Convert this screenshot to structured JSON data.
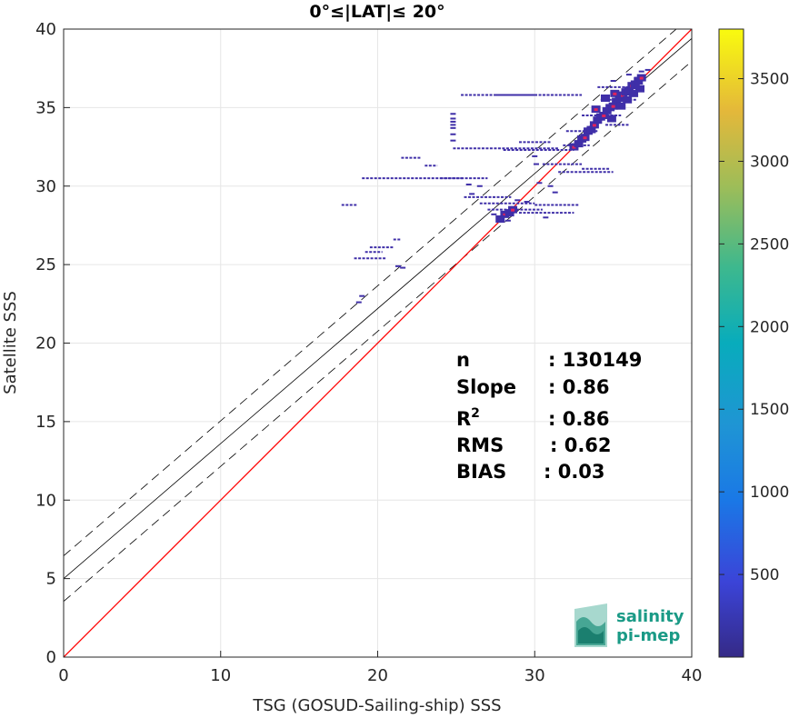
{
  "chart_data": {
    "type": "scatter",
    "title": "0°≤|LAT|≤ 20°",
    "xlabel": "TSG (GOSUD-Sailing-ship) SSS",
    "ylabel": "Satellite SSS",
    "xlim": [
      0,
      40
    ],
    "ylim": [
      0,
      40
    ],
    "xticks": [
      "0",
      "10",
      "20",
      "30",
      "40"
    ],
    "yticks": [
      "0",
      "5",
      "10",
      "15",
      "20",
      "25",
      "30",
      "35",
      "40"
    ],
    "grid": true,
    "identity_line": {
      "slope": 1,
      "intercept": 0,
      "color": "#ff0000"
    },
    "fit_line": {
      "slope": 0.86,
      "intercept": 5.0
    },
    "fit_band_offset": 1.45,
    "stats": [
      {
        "label": "n",
        "value": ": 130149"
      },
      {
        "label": "Slope",
        "value": ": 0.86"
      },
      {
        "label": "R",
        "sup": "2",
        "value": ": 0.86"
      },
      {
        "label": "RMS",
        "value": ": 0.62"
      },
      {
        "label": "BIAS",
        "value": ": 0.03"
      }
    ],
    "segments": [
      [
        25.3,
        35.8,
        31.2,
        35.8
      ],
      [
        27.5,
        35.8,
        30.0,
        35.8
      ],
      [
        30.5,
        35.8,
        33.0,
        35.8
      ],
      [
        24.8,
        32.4,
        31.5,
        32.4
      ],
      [
        28.0,
        32.3,
        32.5,
        32.3
      ],
      [
        31.8,
        32.6,
        33.5,
        32.6
      ],
      [
        19.0,
        30.5,
        25.5,
        30.5
      ],
      [
        24.0,
        30.5,
        27.0,
        30.5
      ],
      [
        25.5,
        29.3,
        28.5,
        29.3
      ],
      [
        26.5,
        28.9,
        30.0,
        28.9
      ],
      [
        27.0,
        28.5,
        30.5,
        28.5
      ],
      [
        29.0,
        28.3,
        32.5,
        28.3
      ],
      [
        30.0,
        28.8,
        32.8,
        28.8
      ],
      [
        17.7,
        28.8,
        18.7,
        28.8
      ],
      [
        19.5,
        26.1,
        21.0,
        26.1
      ],
      [
        18.5,
        25.4,
        20.5,
        25.4
      ],
      [
        19.2,
        25.8,
        20.3,
        25.8
      ],
      [
        21.0,
        26.6,
        21.5,
        26.6
      ],
      [
        21.5,
        31.8,
        22.8,
        31.8
      ],
      [
        23.0,
        31.3,
        23.8,
        31.3
      ],
      [
        30.5,
        31.4,
        33.0,
        31.4
      ],
      [
        31.5,
        30.9,
        35.0,
        30.9
      ],
      [
        33.0,
        31.1,
        34.8,
        31.1
      ],
      [
        32.0,
        33.5,
        34.0,
        33.5
      ],
      [
        34.0,
        36.3,
        36.8,
        36.3
      ],
      [
        34.5,
        33.9,
        36.0,
        33.9
      ],
      [
        29.0,
        32.8,
        31.0,
        32.8
      ],
      [
        33.0,
        34.5,
        35.5,
        34.5
      ],
      [
        34.2,
        35.5,
        36.5,
        35.5
      ]
    ],
    "points": [
      [
        24.8,
        34.6
      ],
      [
        24.8,
        34.1
      ],
      [
        24.8,
        33.7
      ],
      [
        24.8,
        33.3
      ],
      [
        24.8,
        32.9
      ],
      [
        24.8,
        33.9
      ],
      [
        24.8,
        34.3
      ],
      [
        30.0,
        31.9
      ],
      [
        30.1,
        31.4
      ],
      [
        30.3,
        30.2
      ],
      [
        31.0,
        30.0
      ],
      [
        31.3,
        29.6
      ],
      [
        29.5,
        29.0
      ],
      [
        28.9,
        29.1
      ],
      [
        30.7,
        28.0
      ],
      [
        19.0,
        23.0
      ],
      [
        18.8,
        22.6
      ],
      [
        21.3,
        24.9
      ],
      [
        21.6,
        24.8
      ],
      [
        26.0,
        29.5
      ],
      [
        25.8,
        30.1
      ],
      [
        26.5,
        30.0
      ],
      [
        27.4,
        28.2
      ],
      [
        27.7,
        28.0
      ],
      [
        28.3,
        27.8
      ],
      [
        36.8,
        37.3
      ],
      [
        37.2,
        37.4
      ],
      [
        36.0,
        37.1
      ],
      [
        35.0,
        36.7
      ],
      [
        36.5,
        36.9
      ]
    ],
    "dense_points": [
      [
        32.5,
        32.5
      ],
      [
        32.8,
        32.7
      ],
      [
        33.0,
        33.0
      ],
      [
        33.2,
        33.1
      ],
      [
        33.4,
        33.5
      ],
      [
        33.6,
        33.6
      ],
      [
        33.8,
        33.9
      ],
      [
        34.0,
        34.2
      ],
      [
        34.2,
        34.4
      ],
      [
        34.4,
        34.5
      ],
      [
        34.6,
        34.8
      ],
      [
        34.8,
        35.0
      ],
      [
        35.0,
        35.1
      ],
      [
        35.2,
        35.4
      ],
      [
        35.4,
        35.6
      ],
      [
        35.6,
        35.8
      ],
      [
        35.8,
        36.0
      ],
      [
        36.0,
        36.1
      ],
      [
        36.2,
        36.4
      ],
      [
        36.4,
        36.5
      ],
      [
        36.6,
        36.7
      ],
      [
        36.8,
        36.9
      ],
      [
        35.5,
        35.1
      ],
      [
        35.9,
        35.5
      ],
      [
        35.1,
        35.9
      ],
      [
        34.5,
        35.6
      ],
      [
        34.9,
        34.3
      ],
      [
        33.9,
        34.9
      ],
      [
        36.3,
        35.9
      ],
      [
        36.7,
        36.2
      ],
      [
        28.1,
        28.2
      ],
      [
        28.4,
        28.3
      ],
      [
        27.8,
        27.9
      ],
      [
        28.6,
        28.5
      ]
    ],
    "colorbar": {
      "range": [
        0,
        3800
      ],
      "ticks": [
        "500",
        "1000",
        "1500",
        "2000",
        "2500",
        "3000",
        "3500"
      ],
      "colormap": "parula"
    },
    "colors": {
      "scatter": "#3f2fa8",
      "hot": "#e0245c",
      "identity": "#ff0000",
      "fit": "#000000",
      "grid": "#e6e6e6"
    }
  },
  "logo": {
    "line1": "salinity",
    "line2": "pi-mep"
  }
}
